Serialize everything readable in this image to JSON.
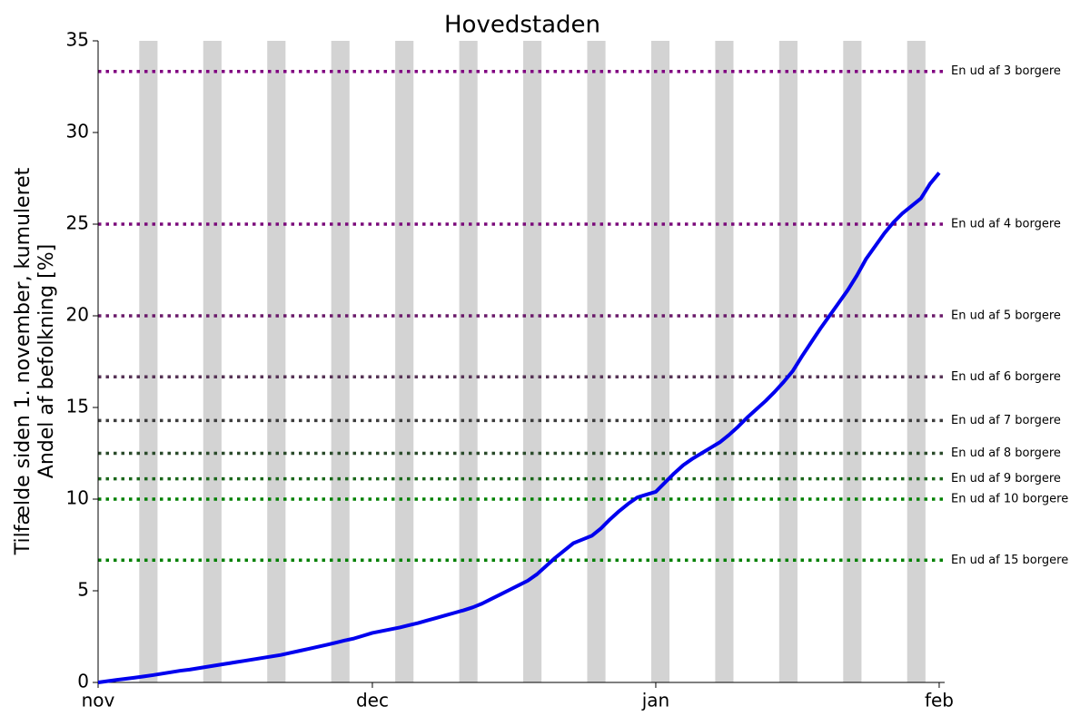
{
  "chart_data": {
    "type": "line",
    "title": "Hovedstaden",
    "ylabel": [
      "Tilfælde siden 1. november, kumuleret",
      "Andel af befolkning [%]"
    ],
    "x": [
      0,
      1,
      2,
      3,
      4,
      5,
      6,
      7,
      8,
      9,
      10,
      11,
      12,
      13,
      14,
      15,
      16,
      17,
      18,
      19,
      20,
      21,
      22,
      23,
      24,
      25,
      26,
      27,
      28,
      29,
      30,
      31,
      32,
      33,
      34,
      35,
      36,
      37,
      38,
      39,
      40,
      41,
      42,
      43,
      44,
      45,
      46,
      47,
      48,
      49,
      50,
      51,
      52,
      53,
      54,
      55,
      56,
      57,
      58,
      59,
      60,
      61,
      62,
      63,
      64,
      65,
      66,
      67,
      68,
      69,
      70,
      71,
      72,
      73,
      74,
      75,
      76,
      77,
      78,
      79,
      80,
      81,
      82,
      83,
      84,
      85,
      86,
      87,
      88,
      89,
      90,
      91,
      92
    ],
    "series": [
      {
        "color": "#0000ee",
        "values": [
          0,
          0.07,
          0.14,
          0.2,
          0.26,
          0.33,
          0.4,
          0.48,
          0.56,
          0.64,
          0.7,
          0.78,
          0.86,
          0.94,
          1.02,
          1.1,
          1.18,
          1.26,
          1.34,
          1.42,
          1.5,
          1.61,
          1.72,
          1.83,
          1.94,
          2.05,
          2.17,
          2.29,
          2.4,
          2.55,
          2.7,
          2.8,
          2.9,
          3.0,
          3.12,
          3.24,
          3.38,
          3.52,
          3.66,
          3.8,
          3.94,
          4.1,
          4.3,
          4.55,
          4.8,
          5.05,
          5.3,
          5.55,
          5.9,
          6.35,
          6.8,
          7.2,
          7.6,
          7.8,
          8.0,
          8.4,
          8.9,
          9.35,
          9.75,
          10.1,
          10.25,
          10.4,
          10.9,
          11.4,
          11.85,
          12.2,
          12.5,
          12.8,
          13.1,
          13.5,
          13.95,
          14.45,
          14.9,
          15.35,
          15.85,
          16.4,
          17.0,
          17.8,
          18.55,
          19.3,
          20.0,
          20.7,
          21.4,
          22.2,
          23.1,
          23.8,
          24.5,
          25.1,
          25.6,
          26.0,
          26.4,
          27.2,
          27.8
        ]
      }
    ],
    "xlim": [
      0,
      92.6
    ],
    "xticks": [
      {
        "value": 0,
        "label": "nov"
      },
      {
        "value": 30,
        "label": "dec"
      },
      {
        "value": 61,
        "label": "jan"
      },
      {
        "value": 92,
        "label": "feb"
      }
    ],
    "ylim": [
      0,
      35
    ],
    "yticks": [
      0,
      5,
      10,
      15,
      20,
      25,
      30,
      35
    ],
    "weekend_bands": [
      [
        4.5,
        6.5
      ],
      [
        11.5,
        13.5
      ],
      [
        18.5,
        20.5
      ],
      [
        25.5,
        27.5
      ],
      [
        32.5,
        34.5
      ],
      [
        39.5,
        41.5
      ],
      [
        46.5,
        48.5
      ],
      [
        53.5,
        55.5
      ],
      [
        60.5,
        62.5
      ],
      [
        67.5,
        69.5
      ],
      [
        74.5,
        76.5
      ],
      [
        81.5,
        83.5
      ],
      [
        88.5,
        90.5
      ]
    ],
    "band_color": "#d3d3d3",
    "reference_lines": [
      {
        "value": 33.33,
        "label": "En ud af 3 borgere",
        "color": "#800080"
      },
      {
        "value": 25,
        "label": "En ud af 4 borgere",
        "color": "#7a0a7a"
      },
      {
        "value": 20,
        "label": "En ud af 5 borgere",
        "color": "#6a1a6a"
      },
      {
        "value": 16.67,
        "label": "En ud af 6 borgere",
        "color": "#553355"
      },
      {
        "value": 14.29,
        "label": "En ud af 7 borgere",
        "color": "#3d3d3d"
      },
      {
        "value": 12.5,
        "label": "En ud af 8 borgere",
        "color": "#2a4a2a"
      },
      {
        "value": 11.11,
        "label": "En ud af 9 borgere",
        "color": "#1a661a"
      },
      {
        "value": 10,
        "label": "En ud af 10 borgere",
        "color": "#008000"
      },
      {
        "value": 6.67,
        "label": "En ud af 15 borgere",
        "color": "#008000"
      }
    ]
  }
}
